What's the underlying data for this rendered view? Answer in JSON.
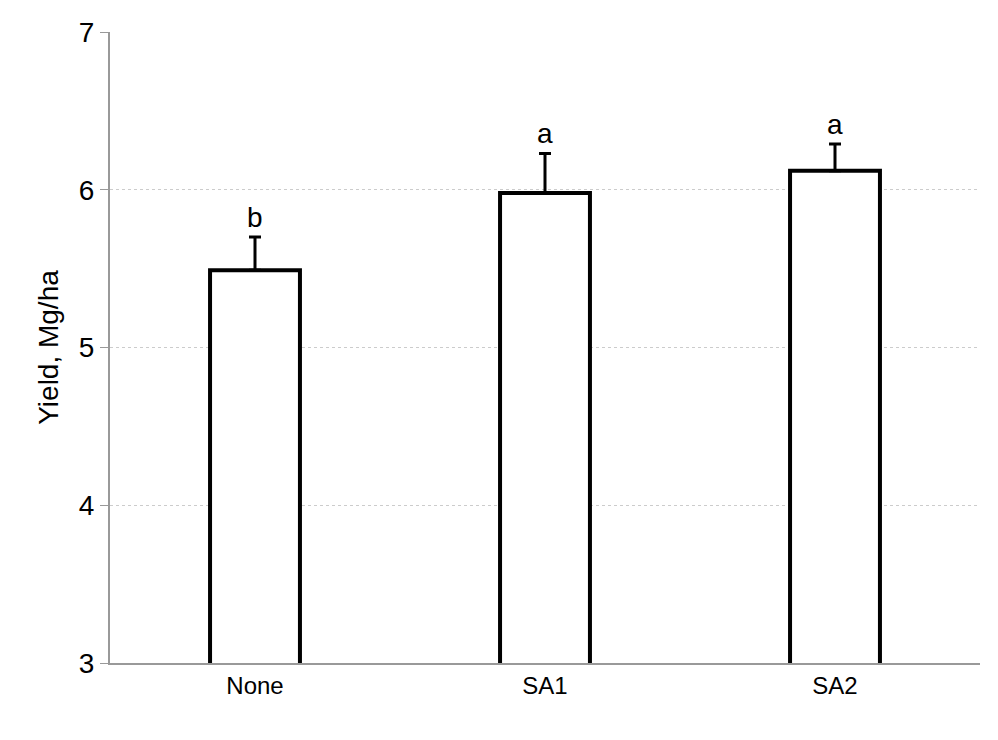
{
  "chart_data": {
    "type": "bar",
    "y_label": "Yield, Mg/ha",
    "categories": [
      "None",
      "SA1",
      "SA2"
    ],
    "values": [
      5.49,
      5.98,
      6.12
    ],
    "errors": [
      0.21,
      0.25,
      0.17
    ],
    "annotations": [
      "b",
      "a",
      "a"
    ],
    "color": "#ffffff",
    "ylim": [
      3,
      7
    ],
    "yticks": [
      3,
      4,
      5,
      6,
      7
    ],
    "grid": true
  }
}
